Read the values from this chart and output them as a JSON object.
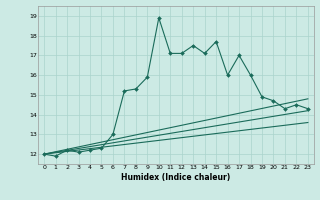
{
  "xlabel": "Humidex (Indice chaleur)",
  "ylabel": "",
  "bg_color": "#cceae4",
  "line_color": "#1a6b5a",
  "grid_color": "#aad4cc",
  "xlim": [
    -0.5,
    23.5
  ],
  "ylim": [
    11.5,
    19.5
  ],
  "xticks": [
    0,
    1,
    2,
    3,
    4,
    5,
    6,
    7,
    8,
    9,
    10,
    11,
    12,
    13,
    14,
    15,
    16,
    17,
    18,
    19,
    20,
    21,
    22,
    23
  ],
  "yticks": [
    12,
    13,
    14,
    15,
    16,
    17,
    18,
    19
  ],
  "main_x": [
    0,
    1,
    2,
    3,
    4,
    5,
    6,
    7,
    8,
    9,
    10,
    11,
    12,
    13,
    14,
    15,
    16,
    17,
    18,
    19,
    20,
    21,
    22,
    23
  ],
  "main_y": [
    12.0,
    11.9,
    12.2,
    12.1,
    12.2,
    12.3,
    13.0,
    15.2,
    15.3,
    15.9,
    18.9,
    17.1,
    17.1,
    17.5,
    17.1,
    17.7,
    16.0,
    17.0,
    16.0,
    14.9,
    14.7,
    14.3,
    14.5,
    14.3
  ],
  "line2_x": [
    0,
    23
  ],
  "line2_y": [
    12.0,
    14.2
  ],
  "line3_x": [
    0,
    23
  ],
  "line3_y": [
    12.0,
    13.6
  ],
  "line4_x": [
    0,
    23
  ],
  "line4_y": [
    12.0,
    14.8
  ]
}
